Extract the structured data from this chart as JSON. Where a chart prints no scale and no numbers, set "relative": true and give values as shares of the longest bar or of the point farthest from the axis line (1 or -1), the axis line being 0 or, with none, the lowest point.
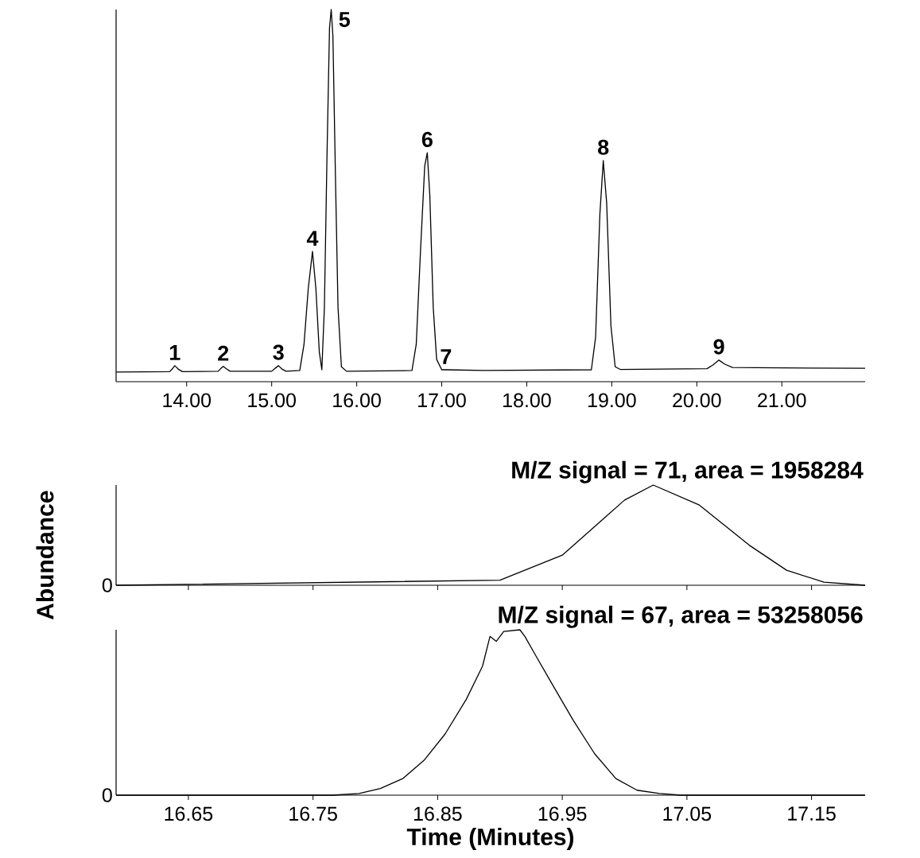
{
  "chart_data": [
    {
      "type": "line",
      "relative": true,
      "color": "#000000",
      "tick_labels": "x",
      "xlim": [
        13.17,
        21.98
      ],
      "xticks": [
        {
          "value": 14,
          "label": "14.00"
        },
        {
          "value": 15,
          "label": "15.00"
        },
        {
          "value": 16,
          "label": "16.00"
        },
        {
          "value": 17,
          "label": "17.00"
        },
        {
          "value": 18,
          "label": "18.00"
        },
        {
          "value": 19,
          "label": "19.00"
        },
        {
          "value": 20,
          "label": "20.00"
        },
        {
          "value": 21,
          "label": "21.00"
        }
      ],
      "x": [
        13.17,
        13.8,
        13.83,
        13.86,
        13.9,
        13.95,
        14.37,
        14.4,
        14.43,
        14.47,
        14.51,
        15.0,
        15.04,
        15.08,
        15.12,
        15.17,
        15.33,
        15.38,
        15.43,
        15.48,
        15.52,
        15.56,
        15.59,
        15.62,
        15.65,
        15.68,
        15.7,
        15.72,
        15.75,
        15.78,
        15.82,
        15.88,
        16.65,
        16.7,
        16.75,
        16.8,
        16.83,
        16.86,
        16.9,
        16.94,
        17.0,
        17.05,
        17.5,
        18.76,
        18.81,
        18.86,
        18.9,
        18.94,
        18.99,
        19.04,
        19.1,
        20.12,
        20.19,
        20.26,
        20.33,
        20.42,
        21.0,
        21.98
      ],
      "values": [
        0.026,
        0.027,
        0.034,
        0.043,
        0.034,
        0.027,
        0.028,
        0.035,
        0.041,
        0.034,
        0.028,
        0.028,
        0.036,
        0.043,
        0.034,
        0.028,
        0.03,
        0.1,
        0.25,
        0.35,
        0.25,
        0.08,
        0.032,
        0.2,
        0.6,
        0.95,
        1.0,
        0.93,
        0.55,
        0.2,
        0.04,
        0.028,
        0.03,
        0.1,
        0.35,
        0.58,
        0.615,
        0.5,
        0.2,
        0.06,
        0.032,
        0.032,
        0.03,
        0.032,
        0.12,
        0.45,
        0.594,
        0.48,
        0.15,
        0.04,
        0.033,
        0.035,
        0.045,
        0.058,
        0.047,
        0.038,
        0.037,
        0.036
      ],
      "annotations": [
        {
          "text": "1",
          "x": 13.86,
          "y": 0.043
        },
        {
          "text": "2",
          "x": 14.43,
          "y": 0.041
        },
        {
          "text": "3",
          "x": 15.08,
          "y": 0.043
        },
        {
          "text": "4",
          "x": 15.48,
          "y": 0.35
        },
        {
          "text": "5",
          "x": 15.7,
          "y": 1.0
        },
        {
          "text": "6",
          "x": 16.83,
          "y": 0.615
        },
        {
          "text": "7",
          "x": 17.05,
          "y": 0.032
        },
        {
          "text": "8",
          "x": 18.9,
          "y": 0.594
        },
        {
          "text": "9",
          "x": 20.26,
          "y": 0.058
        }
      ]
    },
    {
      "type": "line",
      "relative": true,
      "color": "#000000",
      "tick_labels": false,
      "xlim": [
        16.592,
        17.193
      ],
      "xticks": [
        {
          "value": 16.65,
          "label": null
        },
        {
          "value": 16.75,
          "label": null
        },
        {
          "value": 16.85,
          "label": null
        },
        {
          "value": 16.95,
          "label": null
        },
        {
          "value": 17.05,
          "label": null
        },
        {
          "value": 17.15,
          "label": null
        }
      ],
      "title": "M/Z signal = 71, area = 1958284",
      "ylabel": "Abundance",
      "x": [
        16.592,
        16.9,
        16.95,
        17.0,
        17.023,
        17.06,
        17.1,
        17.13,
        17.16,
        17.193
      ],
      "values": [
        0,
        0.05,
        0.3,
        0.85,
        1.0,
        0.8,
        0.4,
        0.15,
        0.03,
        0
      ],
      "annotations": [
        "0"
      ]
    },
    {
      "type": "line",
      "relative": true,
      "color": "#000000",
      "tick_labels": "x",
      "xlim": [
        16.592,
        17.193
      ],
      "xticks": [
        {
          "value": 16.65,
          "label": "16.65"
        },
        {
          "value": 16.75,
          "label": "16.75"
        },
        {
          "value": 16.85,
          "label": "16.85"
        },
        {
          "value": 16.95,
          "label": "16.95"
        },
        {
          "value": 17.05,
          "label": "17.05"
        },
        {
          "value": 17.15,
          "label": "17.15"
        }
      ],
      "title": "M/Z signal = 67, area = 53258056",
      "xlabel": "Time (Minutes)",
      "x": [
        16.592,
        16.766,
        16.787,
        16.804,
        16.822,
        16.839,
        16.856,
        16.873,
        16.886,
        16.892,
        16.897,
        16.903,
        16.916,
        16.92,
        16.929,
        16.942,
        16.959,
        16.976,
        16.993,
        17.01,
        17.028,
        17.045,
        17.193
      ],
      "values": [
        0,
        0,
        0.01,
        0.04,
        0.1,
        0.21,
        0.37,
        0.58,
        0.78,
        0.96,
        0.93,
        0.99,
        1.0,
        0.96,
        0.84,
        0.67,
        0.45,
        0.25,
        0.1,
        0.03,
        0.01,
        0,
        0
      ],
      "annotations": [
        "0"
      ]
    }
  ]
}
